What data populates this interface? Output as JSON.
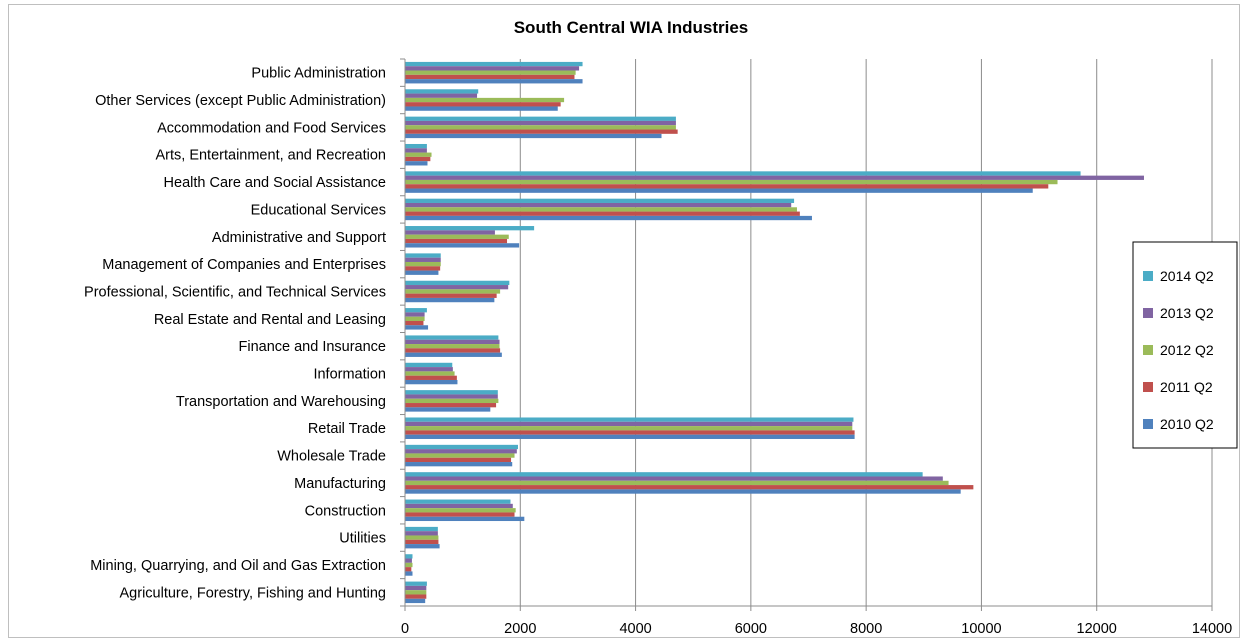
{
  "chart_data": {
    "type": "bar",
    "orientation": "horizontal",
    "title": "South Central WIA Industries",
    "xlabel": "",
    "ylabel": "",
    "xlim": [
      0,
      14000
    ],
    "xticks": [
      0,
      2000,
      4000,
      6000,
      8000,
      10000,
      12000,
      14000
    ],
    "grid": true,
    "legend_position": "right",
    "categories": [
      "Public Administration",
      "Other Services (except Public Administration)",
      "Accommodation and Food Services",
      "Arts, Entertainment,  and Recreation",
      "Health Care and Social Assistance",
      "Educational Services",
      "Administrative and Support",
      "Management of Companies and Enterprises",
      "Professional, Scientific, and Technical Services",
      "Real Estate  and Rental and Leasing",
      "Finance and Insurance",
      "Information",
      "Transportation and Warehousing",
      "Retail Trade",
      "Wholesale Trade",
      "Manufacturing",
      "Construction",
      "Utilities",
      "Mining, Quarrying, and Oil and Gas Extraction",
      "Agriculture, Forestry, Fishing and Hunting"
    ],
    "series": [
      {
        "name": "2014 Q2",
        "color": "#4bacc6",
        "values": [
          3080,
          1270,
          4700,
          380,
          11720,
          6750,
          2240,
          620,
          1810,
          380,
          1620,
          820,
          1610,
          7780,
          1960,
          8980,
          1830,
          570,
          130,
          380
        ]
      },
      {
        "name": "2013 Q2",
        "color": "#8064a2",
        "values": [
          3020,
          1250,
          4700,
          380,
          12820,
          6700,
          1560,
          620,
          1790,
          340,
          1640,
          830,
          1610,
          7760,
          1940,
          9330,
          1870,
          570,
          120,
          370
        ]
      },
      {
        "name": "2012 Q2",
        "color": "#9bbb59",
        "values": [
          2960,
          2760,
          4700,
          460,
          11320,
          6800,
          1800,
          620,
          1650,
          340,
          1640,
          860,
          1620,
          7760,
          1900,
          9430,
          1920,
          580,
          130,
          370
        ]
      },
      {
        "name": "2011 Q2",
        "color": "#c0504d",
        "values": [
          2940,
          2700,
          4730,
          440,
          11160,
          6850,
          1770,
          610,
          1590,
          320,
          1650,
          900,
          1580,
          7800,
          1840,
          9860,
          1900,
          580,
          110,
          370
        ]
      },
      {
        "name": "2010 Q2",
        "color": "#4f81bd",
        "values": [
          3080,
          2650,
          4450,
          390,
          10890,
          7060,
          1980,
          580,
          1550,
          400,
          1680,
          910,
          1480,
          7800,
          1860,
          9640,
          2070,
          600,
          130,
          350
        ]
      }
    ]
  }
}
